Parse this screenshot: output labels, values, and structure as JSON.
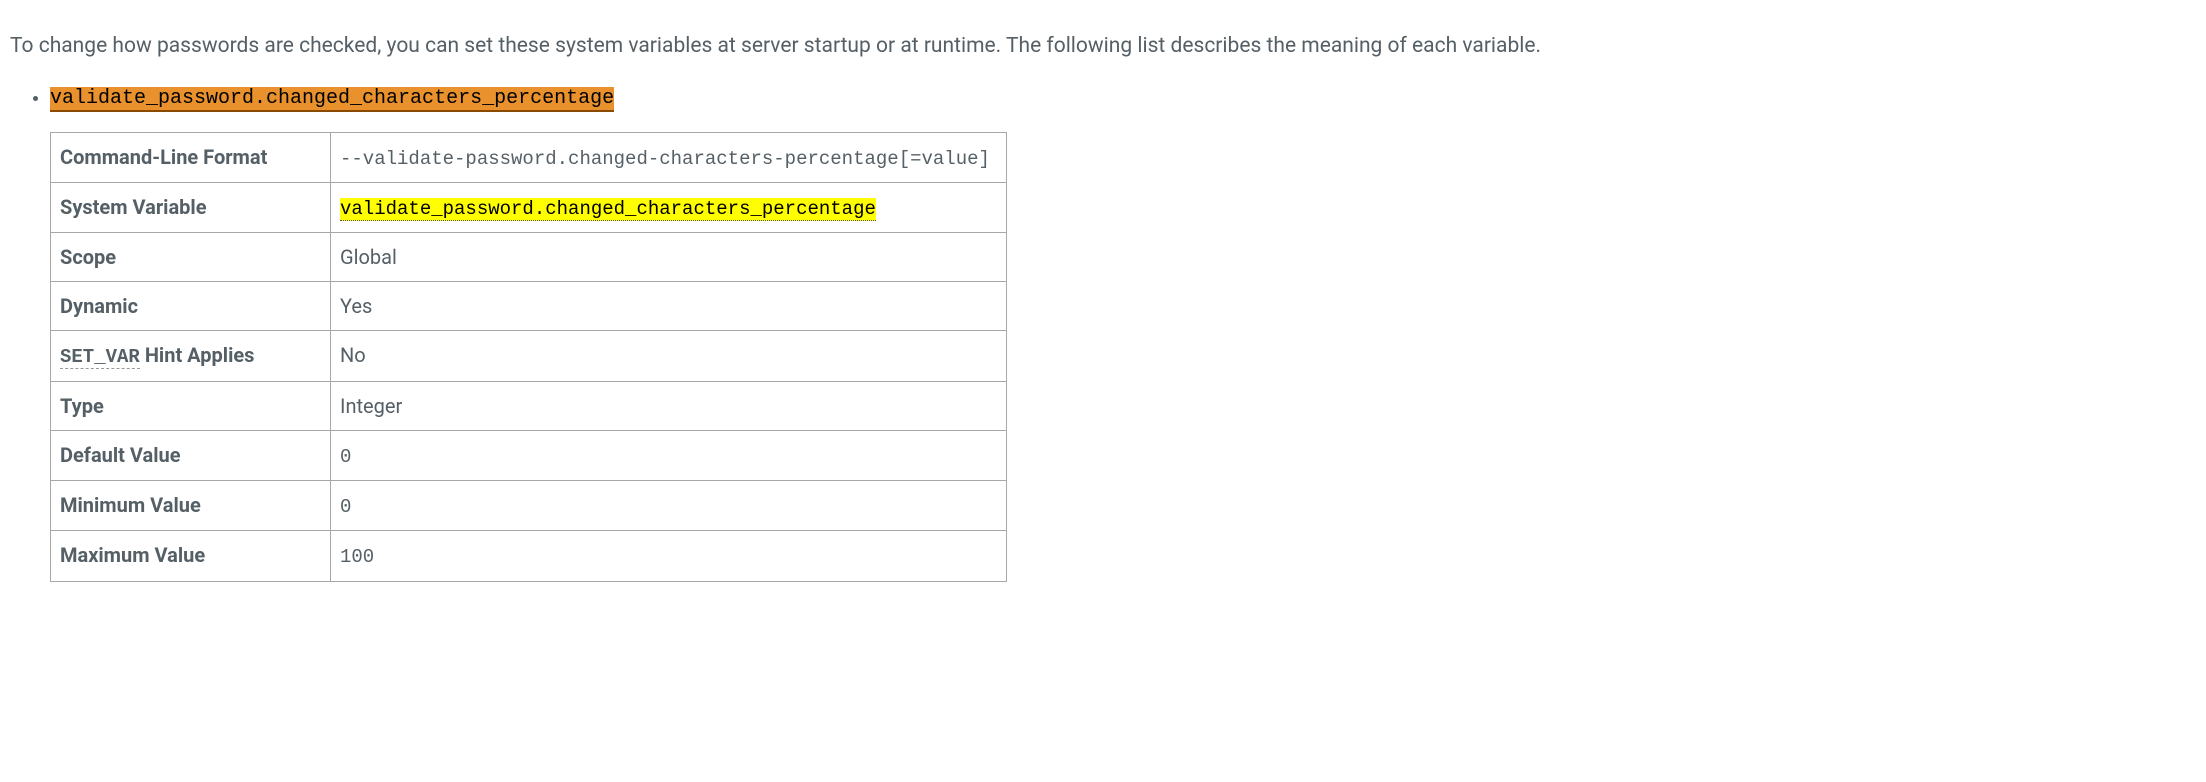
{
  "intro_text": "To change how passwords are checked, you can set these system variables at server startup or at runtime. The following list describes the meaning of each variable.",
  "variable": {
    "name": "validate_password.changed_characters_percentage",
    "table": {
      "colors": {
        "border": "#a7a7a7",
        "header_highlight_bg": "#e8912d",
        "header_highlight_underline": "#8a4a00",
        "sysvar_highlight_bg": "#ffff00",
        "text": "#555f66",
        "mono_text": "#555f66",
        "highlight_text": "#000000"
      },
      "rows": {
        "cmdline_format": {
          "label": "Command-Line Format",
          "value": "--validate-password.changed-characters-percentage[=value]"
        },
        "system_variable": {
          "label": "System Variable",
          "value": "validate_password.changed_characters_percentage"
        },
        "scope": {
          "label": "Scope",
          "value": "Global"
        },
        "dynamic": {
          "label": "Dynamic",
          "value": "Yes"
        },
        "set_var_hint": {
          "label_code": "SET_VAR",
          "label_text": " Hint Applies",
          "value": "No"
        },
        "type": {
          "label": "Type",
          "value": "Integer"
        },
        "default_value": {
          "label": "Default Value",
          "value": "0"
        },
        "minimum_value": {
          "label": "Minimum Value",
          "value": "0"
        },
        "maximum_value": {
          "label": "Maximum Value",
          "value": "100"
        }
      }
    }
  }
}
